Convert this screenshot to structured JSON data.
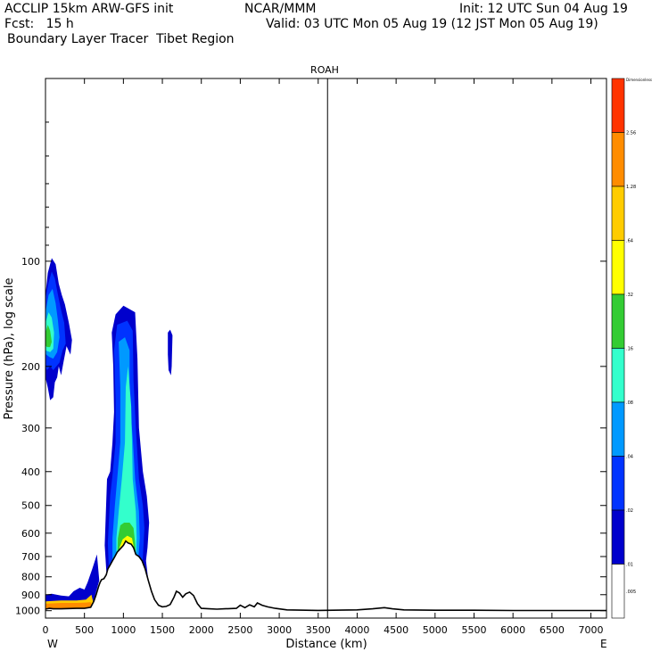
{
  "header": {
    "line1_left": "ACCLIP 15km ARW-GFS init",
    "line1_mid": "NCAR/MMM",
    "line1_right": "Init: 12 UTC Sun 04 Aug 19",
    "line2_left": "Fcst:   15 h",
    "line2_right": "Valid: 03 UTC Mon 05 Aug 19 (12 JST Mon 05 Aug 19)",
    "line3_left": "Boundary Layer Tracer  Tibet Region"
  },
  "chart_data": {
    "type": "heatmap",
    "title": "ROAH",
    "xlabel": "Distance (km)",
    "ylabel": "Pressure (hPa), log scale",
    "x_range": [
      0,
      7200
    ],
    "y_range_hpa": [
      1050,
      30
    ],
    "y_scale": "log",
    "x_ticks": [
      0,
      500,
      1000,
      1500,
      2000,
      2500,
      3000,
      3500,
      4000,
      4500,
      5000,
      5500,
      6000,
      6500,
      7000
    ],
    "y_ticks": [
      100,
      200,
      300,
      400,
      500,
      600,
      700,
      800,
      900,
      1000
    ],
    "x_end_labels": {
      "left": "W",
      "right": "E"
    },
    "vertical_marker_km": 3620,
    "colorbar": {
      "top_label": "Dimensionless",
      "labels": [
        "2.56",
        "1.28",
        ".64",
        ".32",
        ".16",
        ".08",
        ".04",
        ".02",
        ".01",
        ".005"
      ],
      "colors": [
        "#ff3300",
        "#ff8c00",
        "#ffcc00",
        "#ffff00",
        "#33cc33",
        "#33ffcc",
        "#0099ff",
        "#0033ff",
        "#0000cc",
        "#ffffff"
      ]
    },
    "terrain_km_hpa": [
      [
        0,
        990
      ],
      [
        50,
        985
      ],
      [
        100,
        988
      ],
      [
        200,
        988
      ],
      [
        300,
        986
      ],
      [
        400,
        985
      ],
      [
        500,
        985
      ],
      [
        580,
        978
      ],
      [
        620,
        940
      ],
      [
        650,
        900
      ],
      [
        680,
        855
      ],
      [
        700,
        830
      ],
      [
        720,
        815
      ],
      [
        750,
        810
      ],
      [
        780,
        790
      ],
      [
        800,
        760
      ],
      [
        830,
        740
      ],
      [
        860,
        720
      ],
      [
        890,
        700
      ],
      [
        920,
        680
      ],
      [
        960,
        665
      ],
      [
        1000,
        650
      ],
      [
        1030,
        632
      ],
      [
        1060,
        640
      ],
      [
        1100,
        645
      ],
      [
        1130,
        660
      ],
      [
        1160,
        690
      ],
      [
        1200,
        700
      ],
      [
        1240,
        720
      ],
      [
        1280,
        760
      ],
      [
        1320,
        820
      ],
      [
        1360,
        880
      ],
      [
        1400,
        930
      ],
      [
        1450,
        965
      ],
      [
        1500,
        975
      ],
      [
        1550,
        972
      ],
      [
        1600,
        960
      ],
      [
        1650,
        915
      ],
      [
        1680,
        880
      ],
      [
        1720,
        890
      ],
      [
        1760,
        915
      ],
      [
        1800,
        895
      ],
      [
        1850,
        885
      ],
      [
        1900,
        905
      ],
      [
        1950,
        955
      ],
      [
        2000,
        985
      ],
      [
        2100,
        988
      ],
      [
        2200,
        990
      ],
      [
        2300,
        988
      ],
      [
        2450,
        985
      ],
      [
        2500,
        965
      ],
      [
        2560,
        980
      ],
      [
        2620,
        962
      ],
      [
        2680,
        975
      ],
      [
        2720,
        950
      ],
      [
        2780,
        965
      ],
      [
        2850,
        975
      ],
      [
        2950,
        985
      ],
      [
        3100,
        995
      ],
      [
        3500,
        998
      ],
      [
        4000,
        995
      ],
      [
        4200,
        988
      ],
      [
        4350,
        980
      ],
      [
        4450,
        988
      ],
      [
        4600,
        995
      ],
      [
        5000,
        997
      ],
      [
        5500,
        997
      ],
      [
        6000,
        999
      ],
      [
        7200,
        999
      ]
    ],
    "tracer_field": [
      {
        "level": ".01",
        "color": "#0000cc",
        "pts": [
          [
            0,
            990
          ],
          [
            0,
            125
          ],
          [
            30,
            108
          ],
          [
            80,
            98
          ],
          [
            130,
            102
          ],
          [
            170,
            116
          ],
          [
            210,
            125
          ],
          [
            250,
            133
          ],
          [
            300,
            150
          ],
          [
            340,
            168
          ],
          [
            320,
            185
          ],
          [
            270,
            175
          ],
          [
            230,
            195
          ],
          [
            200,
            212
          ],
          [
            170,
            200
          ],
          [
            150,
            215
          ],
          [
            120,
            222
          ],
          [
            100,
            245
          ],
          [
            60,
            250
          ],
          [
            30,
            230
          ],
          [
            0,
            215
          ]
        ]
      },
      {
        "level": ".01",
        "color": "#0000cc",
        "pts": [
          [
            840,
            980
          ],
          [
            790,
            830
          ],
          [
            760,
            650
          ],
          [
            790,
            420
          ],
          [
            830,
            400
          ],
          [
            860,
            330
          ],
          [
            880,
            270
          ],
          [
            870,
            200
          ],
          [
            850,
            160
          ],
          [
            900,
            142
          ],
          [
            1000,
            134
          ],
          [
            1150,
            140
          ],
          [
            1180,
            190
          ],
          [
            1200,
            300
          ],
          [
            1250,
            400
          ],
          [
            1300,
            470
          ],
          [
            1330,
            560
          ],
          [
            1310,
            660
          ],
          [
            1290,
            720
          ],
          [
            1320,
            820
          ],
          [
            1340,
            880
          ],
          [
            1380,
            930
          ],
          [
            1420,
            965
          ],
          [
            1400,
            980
          ]
        ]
      },
      {
        "level": ".01",
        "color": "#0000cc",
        "pts": [
          [
            0,
            990
          ],
          [
            0,
            900
          ],
          [
            80,
            895
          ],
          [
            200,
            905
          ],
          [
            300,
            910
          ],
          [
            360,
            880
          ],
          [
            440,
            860
          ],
          [
            500,
            870
          ],
          [
            540,
            830
          ],
          [
            600,
            760
          ],
          [
            660,
            690
          ],
          [
            690,
            820
          ],
          [
            640,
            900
          ],
          [
            620,
            960
          ],
          [
            590,
            985
          ]
        ]
      },
      {
        "level": ".01",
        "color": "#0000cc",
        "pts": [
          [
            1570,
            160
          ],
          [
            1600,
            157
          ],
          [
            1630,
            163
          ],
          [
            1620,
            200
          ],
          [
            1610,
            212
          ],
          [
            1580,
            205
          ],
          [
            1570,
            185
          ]
        ]
      },
      {
        "level": ".02",
        "color": "#0033ff",
        "pts": [
          [
            0,
            985
          ],
          [
            0,
            128
          ],
          [
            40,
            115
          ],
          [
            80,
            107
          ],
          [
            120,
            112
          ],
          [
            160,
            125
          ],
          [
            200,
            138
          ],
          [
            240,
            150
          ],
          [
            260,
            172
          ],
          [
            220,
            180
          ],
          [
            180,
            195
          ],
          [
            140,
            200
          ],
          [
            100,
            205
          ],
          [
            60,
            200
          ],
          [
            20,
            205
          ],
          [
            0,
            200
          ]
        ]
      },
      {
        "level": ".02",
        "color": "#0033ff",
        "pts": [
          [
            860,
            960
          ],
          [
            820,
            820
          ],
          [
            800,
            640
          ],
          [
            830,
            470
          ],
          [
            860,
            410
          ],
          [
            900,
            330
          ],
          [
            900,
            250
          ],
          [
            880,
            180
          ],
          [
            920,
            152
          ],
          [
            1050,
            148
          ],
          [
            1120,
            158
          ],
          [
            1130,
            220
          ],
          [
            1160,
            300
          ],
          [
            1200,
            420
          ],
          [
            1250,
            500
          ],
          [
            1270,
            580
          ],
          [
            1250,
            700
          ],
          [
            1240,
            780
          ],
          [
            1280,
            850
          ],
          [
            1320,
            920
          ],
          [
            1360,
            960
          ]
        ]
      },
      {
        "level": ".04",
        "color": "#0099ff",
        "pts": [
          [
            0,
            975
          ],
          [
            0,
            140
          ],
          [
            40,
            125
          ],
          [
            90,
            120
          ],
          [
            130,
            132
          ],
          [
            160,
            148
          ],
          [
            180,
            165
          ],
          [
            150,
            182
          ],
          [
            100,
            190
          ],
          [
            50,
            188
          ],
          [
            10,
            185
          ],
          [
            0,
            183
          ]
        ]
      },
      {
        "level": ".04",
        "color": "#0099ff",
        "pts": [
          [
            900,
            900
          ],
          [
            860,
            780
          ],
          [
            860,
            620
          ],
          [
            890,
            500
          ],
          [
            920,
            420
          ],
          [
            960,
            330
          ],
          [
            960,
            230
          ],
          [
            940,
            170
          ],
          [
            1020,
            165
          ],
          [
            1080,
            180
          ],
          [
            1080,
            250
          ],
          [
            1120,
            320
          ],
          [
            1150,
            420
          ],
          [
            1200,
            520
          ],
          [
            1210,
            620
          ],
          [
            1190,
            720
          ],
          [
            1210,
            800
          ],
          [
            1250,
            880
          ]
        ]
      },
      {
        "level": ".08",
        "color": "#33ffcc",
        "pts": [
          [
            0,
            960
          ],
          [
            0,
            150
          ],
          [
            40,
            140
          ],
          [
            80,
            145
          ],
          [
            110,
            160
          ],
          [
            100,
            178
          ],
          [
            60,
            182
          ],
          [
            0,
            180
          ]
        ]
      },
      {
        "level": ".08",
        "color": "#33ffcc",
        "pts": [
          [
            950,
            880
          ],
          [
            910,
            760
          ],
          [
            910,
            620
          ],
          [
            940,
            520
          ],
          [
            980,
            420
          ],
          [
            1020,
            330
          ],
          [
            1030,
            230
          ],
          [
            1060,
            200
          ],
          [
            1100,
            260
          ],
          [
            1110,
            330
          ],
          [
            1120,
            420
          ],
          [
            1160,
            520
          ],
          [
            1170,
            620
          ],
          [
            1160,
            720
          ],
          [
            1190,
            820
          ]
        ]
      },
      {
        "level": ".16",
        "color": "#33cc33",
        "pts": [
          [
            0,
            160
          ],
          [
            30,
            152
          ],
          [
            60,
            158
          ],
          [
            80,
            170
          ],
          [
            60,
            176
          ],
          [
            20,
            176
          ],
          [
            0,
            174
          ]
        ]
      },
      {
        "level": ".16",
        "color": "#33cc33",
        "pts": [
          [
            950,
            870
          ],
          [
            920,
            720
          ],
          [
            930,
            620
          ],
          [
            960,
            570
          ],
          [
            1010,
            560
          ],
          [
            1080,
            560
          ],
          [
            1130,
            580
          ],
          [
            1150,
            640
          ],
          [
            1170,
            740
          ],
          [
            1200,
            820
          ]
        ]
      },
      {
        "level": ".32",
        "color": "#ffff00",
        "pts": [
          [
            960,
            860
          ],
          [
            930,
            740
          ],
          [
            950,
            660
          ],
          [
            990,
            625
          ],
          [
            1050,
            610
          ],
          [
            1110,
            620
          ],
          [
            1140,
            670
          ],
          [
            1160,
            760
          ],
          [
            1180,
            820
          ]
        ]
      },
      {
        "level": ".64",
        "color": "#ffcc00",
        "pts": [
          [
            980,
            840
          ],
          [
            950,
            760
          ],
          [
            970,
            690
          ],
          [
            1010,
            660
          ],
          [
            1060,
            645
          ],
          [
            1110,
            665
          ],
          [
            1130,
            720
          ],
          [
            1150,
            790
          ]
        ]
      },
      {
        "level": ".64",
        "color": "#ffcc00",
        "pts": [
          [
            0,
            990
          ],
          [
            0,
            940
          ],
          [
            200,
            935
          ],
          [
            400,
            935
          ],
          [
            520,
            930
          ],
          [
            590,
            900
          ],
          [
            620,
            960
          ],
          [
            590,
            985
          ]
        ]
      },
      {
        "level": "1.28",
        "color": "#ff8c00",
        "pts": [
          [
            0,
            1000
          ],
          [
            0,
            955
          ],
          [
            200,
            950
          ],
          [
            400,
            950
          ],
          [
            520,
            948
          ],
          [
            580,
            945
          ],
          [
            600,
            970
          ],
          [
            590,
            995
          ]
        ]
      }
    ]
  }
}
